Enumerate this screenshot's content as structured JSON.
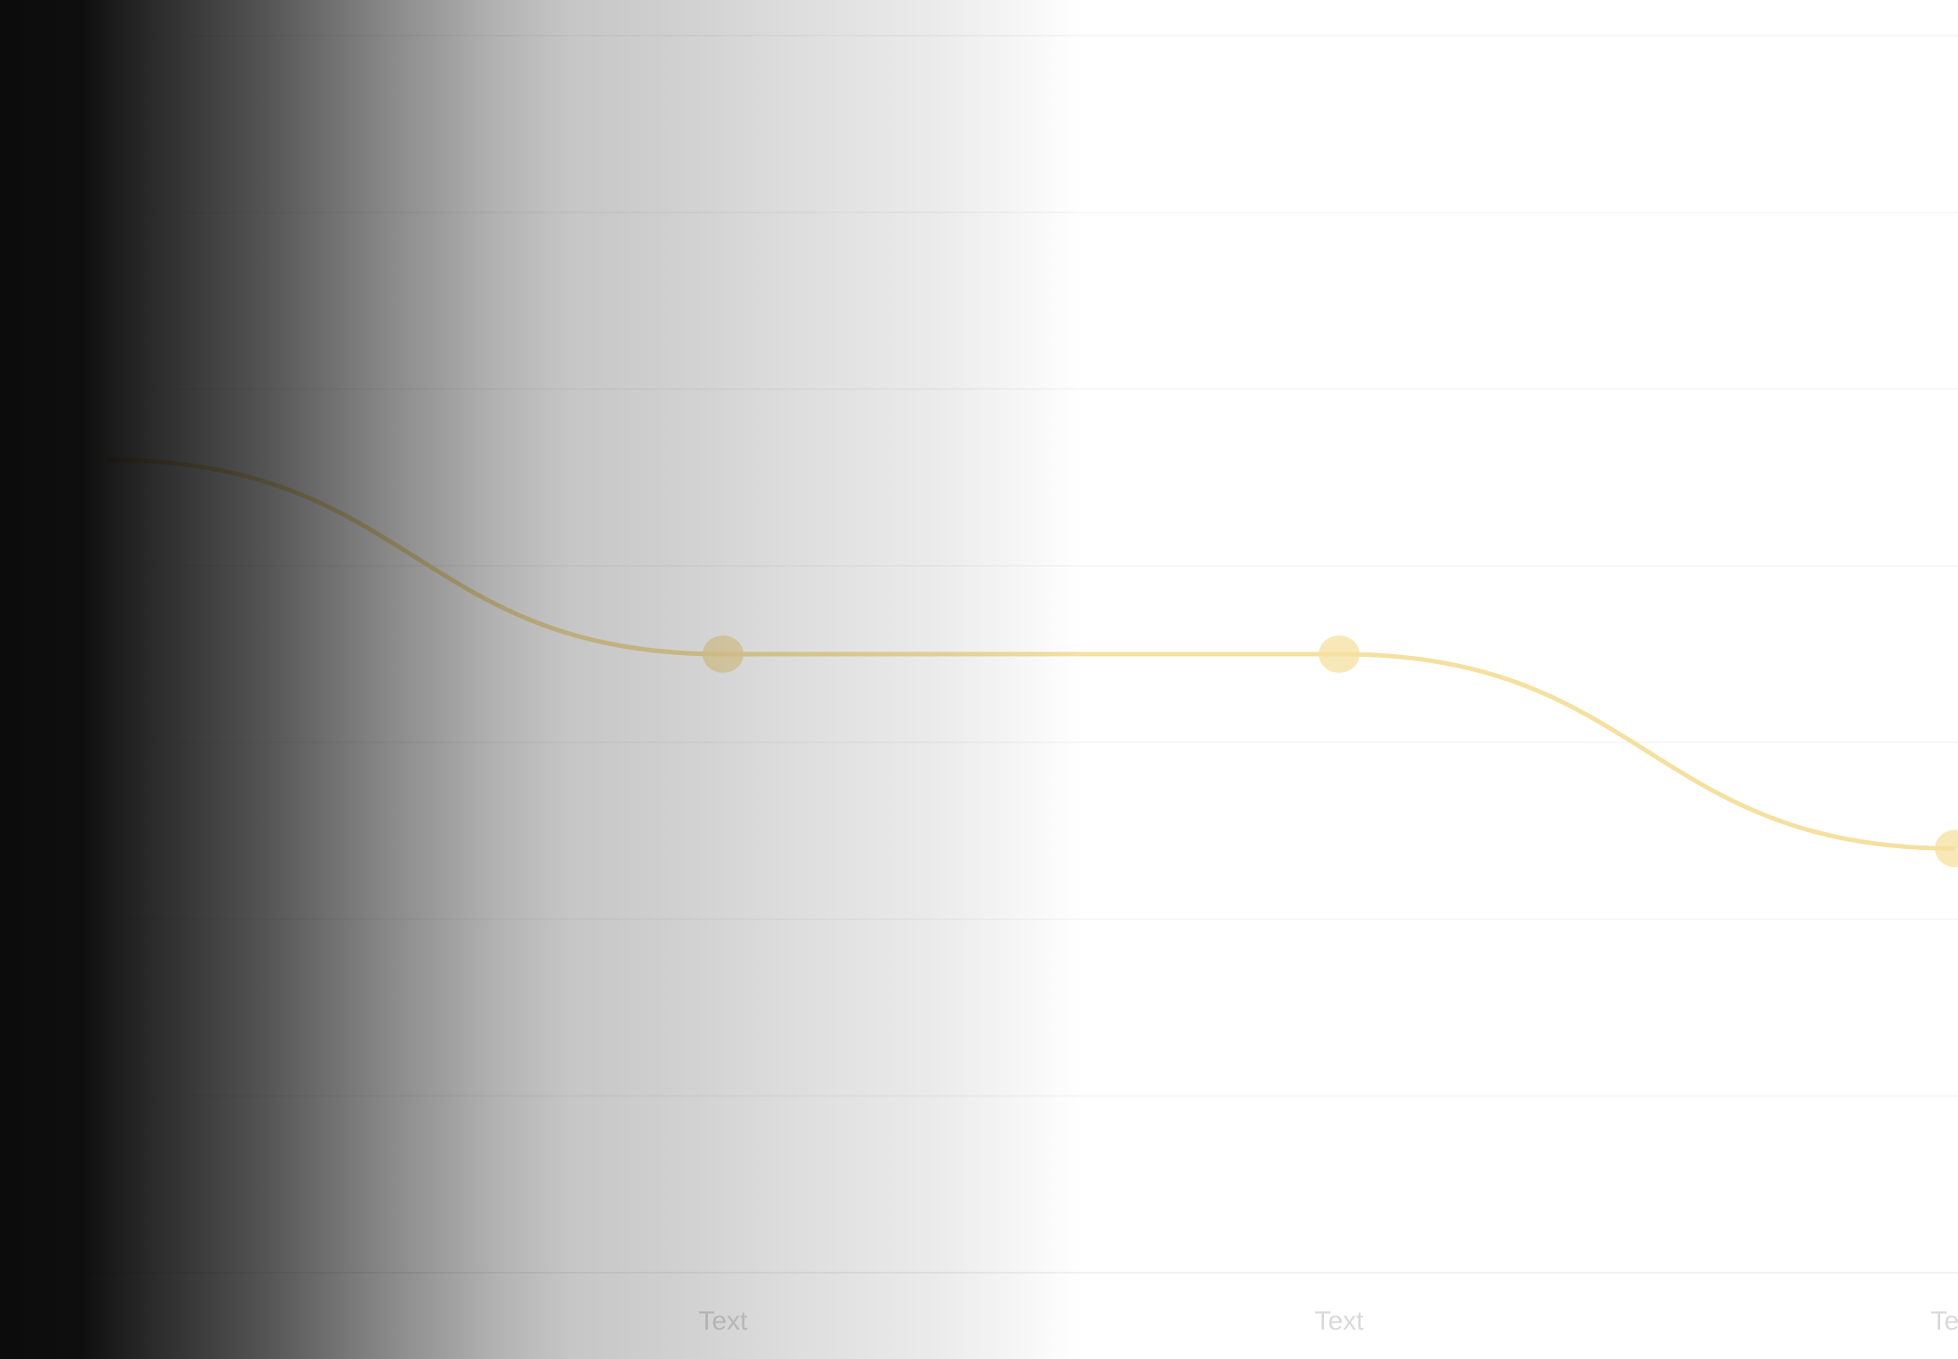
{
  "chart_data": {
    "type": "line",
    "categories": [
      "",
      "Text",
      "Text",
      "Text"
    ],
    "series": [
      {
        "values": [
          4.6,
          3.5,
          3.5,
          2.4
        ],
        "color": "#f5e0a0"
      }
    ],
    "ylim": [
      0,
      7
    ],
    "grid": true,
    "smooth": true,
    "markers": true
  }
}
